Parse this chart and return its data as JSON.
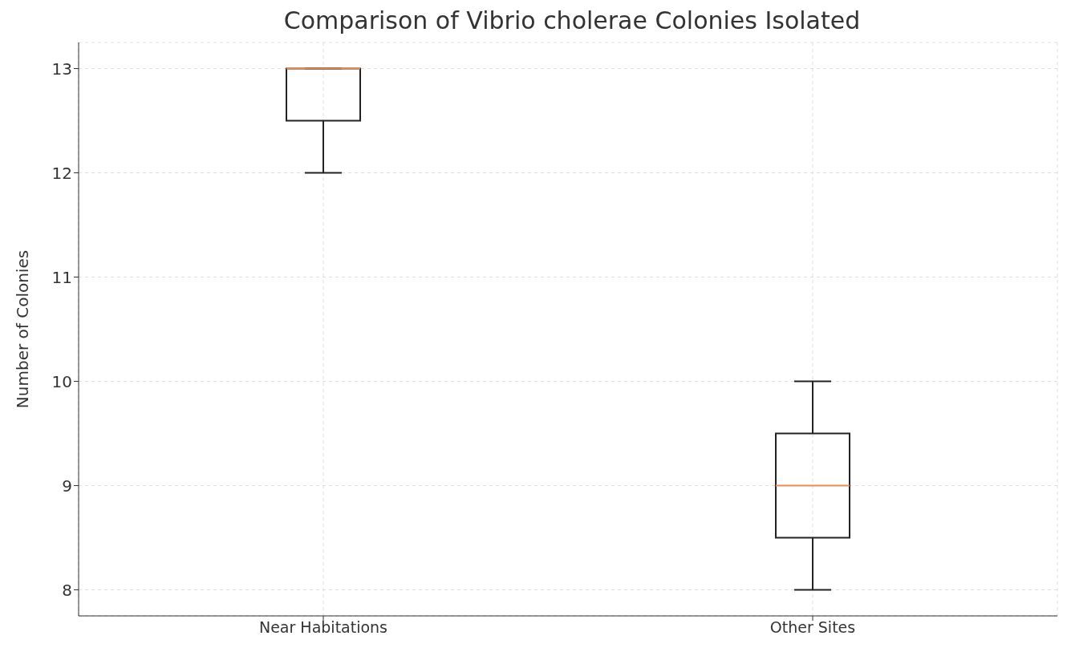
{
  "chart_data": {
    "type": "box",
    "title": "Comparison of Vibrio cholerae Colonies Isolated",
    "ylabel": "Number of Colonies",
    "categories": [
      "Near Habitations",
      "Other Sites"
    ],
    "boxes": [
      {
        "low": 12,
        "q1": 12.5,
        "median": 13,
        "q3": 13,
        "high": 13
      },
      {
        "low": 8,
        "q1": 8.5,
        "median": 9,
        "q3": 9.5,
        "high": 10
      }
    ],
    "color": "#222222",
    "ylim": [
      7.75,
      13.25
    ],
    "yticks": [
      8,
      9,
      10,
      11,
      12,
      13
    ],
    "grid": true
  }
}
